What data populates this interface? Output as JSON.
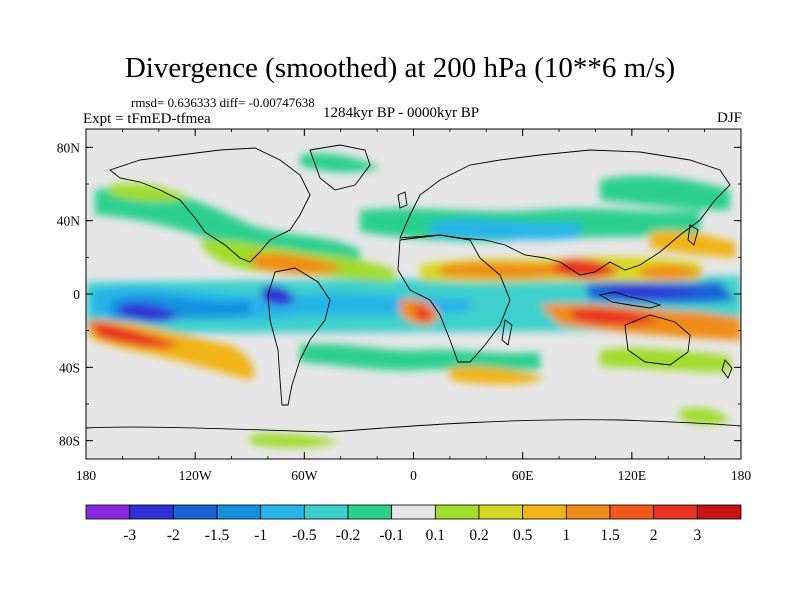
{
  "title": "Divergence (smoothed) at 200 hPa (10**6 m/s)",
  "stats": "rmsd= 0.636333 diff= -0.00747638",
  "experiment": "Expt = tFmED-tfmea",
  "period": "1284kyr BP - 0000kyr BP",
  "season": "DJF",
  "map": {
    "projection": "cylindrical equidistant",
    "lon_range": [
      -180,
      180
    ],
    "lat_range": [
      -90,
      90
    ],
    "x_ticks": [
      "180",
      "120W",
      "60W",
      "0",
      "60E",
      "120E",
      "180"
    ],
    "y_ticks": [
      "80N",
      "40N",
      "0",
      "40S",
      "80S"
    ],
    "land_outline": "coastlines",
    "background_color": "#e6e6e6"
  },
  "colorbar": {
    "labels": [
      "-3",
      "-2",
      "-1.5",
      "-1",
      "-0.5",
      "-0.2",
      "-0.1",
      "0.1",
      "0.2",
      "0.5",
      "1",
      "1.5",
      "2",
      "3"
    ],
    "colors": [
      "#8a2be2",
      "#3030d8",
      "#1e62d8",
      "#1890e0",
      "#28b4e8",
      "#3cd0cc",
      "#2ccf90",
      "#e6e6e6",
      "#a0dc2c",
      "#d8d820",
      "#f0b418",
      "#f08c18",
      "#f05a1c",
      "#e83222",
      "#c81414"
    ]
  }
}
